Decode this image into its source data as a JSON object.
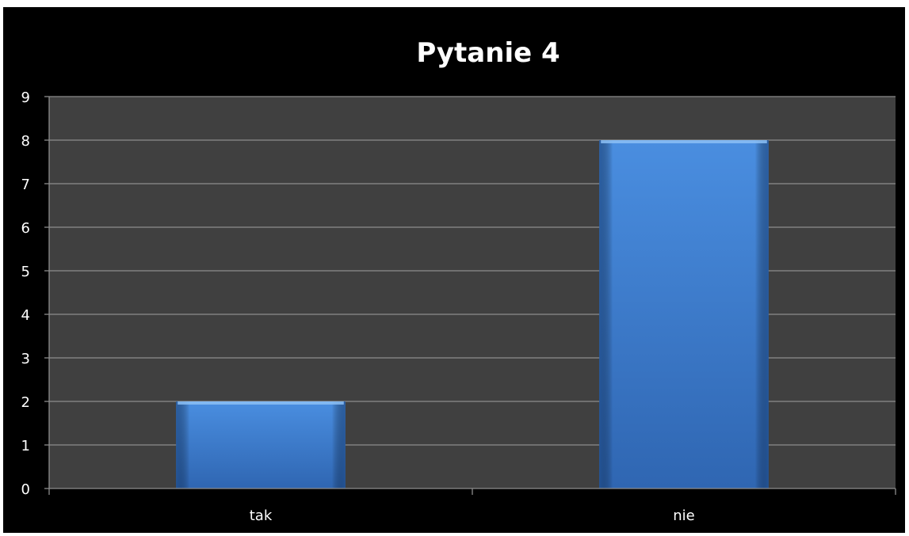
{
  "chart_data": {
    "type": "bar",
    "title": "Pytanie 4",
    "categories": [
      "tak",
      "nie"
    ],
    "values": [
      2,
      8
    ],
    "xlabel": "",
    "ylabel": "",
    "ylim": [
      0,
      9
    ],
    "yticks": [
      0,
      1,
      2,
      3,
      4,
      5,
      6,
      7,
      8,
      9
    ],
    "grid": true,
    "legend": "none"
  },
  "colors": {
    "background": "#000000",
    "plot_area": "#404040",
    "gridline": "#8c8c8c",
    "bar": "#3f7fd4",
    "text": "#ffffff"
  }
}
